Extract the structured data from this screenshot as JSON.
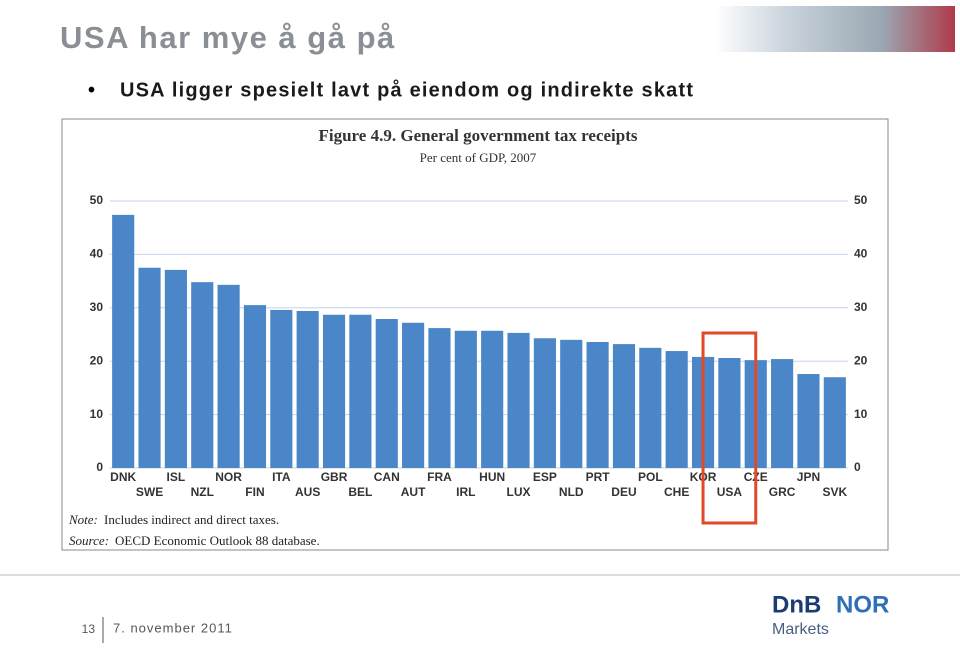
{
  "slide": {
    "title": "USA har mye å gå på",
    "bullet": "USA ligger spesielt lavt på eiendom og indirekte skatt",
    "page": "13",
    "date": "7. november 2011",
    "logo_a": "DnB",
    "logo_b": "NOR",
    "logo_sub": "Markets"
  },
  "chart_data": {
    "type": "bar",
    "title": "Figure 4.9. General government tax receipts",
    "subtitle": "Per cent of GDP, 2007",
    "note_label": "Note:",
    "note": "Includes indirect and direct taxes.",
    "source_label": "Source:",
    "source": "OECD Economic Outlook 88 database.",
    "categories": [
      "DNK",
      "SWE",
      "ISL",
      "NZL",
      "NOR",
      "FIN",
      "ITA",
      "AUS",
      "GBR",
      "BEL",
      "CAN",
      "AUT",
      "FRA",
      "IRL",
      "HUN",
      "LUX",
      "ESP",
      "NLD",
      "PRT",
      "DEU",
      "POL",
      "CHE",
      "KOR",
      "USA",
      "CZE",
      "GRC",
      "JPN",
      "SVK"
    ],
    "values": [
      47.4,
      37.5,
      37.1,
      34.8,
      34.3,
      30.5,
      29.6,
      29.4,
      28.7,
      28.7,
      27.9,
      27.2,
      26.2,
      25.7,
      25.7,
      25.3,
      24.3,
      24.0,
      23.6,
      23.2,
      22.5,
      21.9,
      20.8,
      20.6,
      20.2,
      20.4,
      17.6,
      17.0
    ],
    "color": "#4a86c8",
    "highlight_color": "#e04a2a",
    "ylim": [
      0,
      50
    ],
    "yticks": [
      0,
      10,
      20,
      30,
      40,
      50
    ],
    "y2lim": [
      0,
      50
    ],
    "y2ticks": [
      0,
      10,
      20,
      30,
      40,
      50
    ],
    "grid": true
  }
}
